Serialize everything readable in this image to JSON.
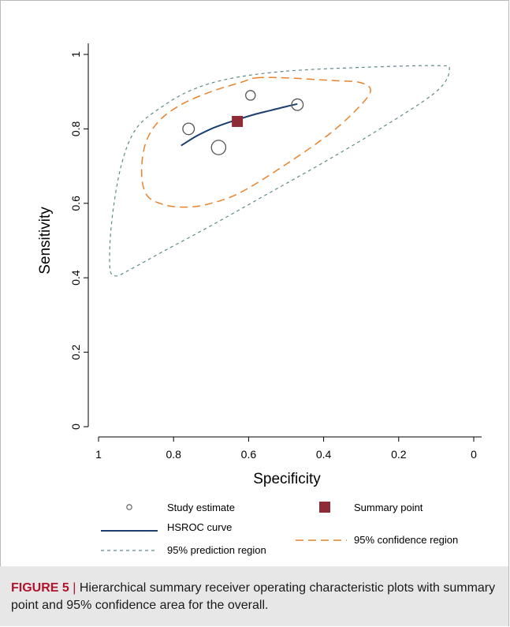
{
  "chart_data": {
    "type": "scatter",
    "xlabel": "Specificity",
    "ylabel": "Sensitivity",
    "xlim": [
      1,
      0
    ],
    "ylim": [
      0,
      1
    ],
    "x_ticks": [
      "1",
      "0.8",
      "0.6",
      "0.4",
      "0.2",
      "0"
    ],
    "x_tick_values": [
      1,
      0.8,
      0.6,
      0.4,
      0.2,
      0
    ],
    "y_ticks": [
      "0",
      "0.2",
      "0.4",
      "0.6",
      "0.8",
      "1"
    ],
    "y_tick_values": [
      0,
      0.2,
      0.4,
      0.6,
      0.8,
      1
    ],
    "study_estimates": [
      {
        "specificity": 0.76,
        "sensitivity": 0.8,
        "weight": 0.55
      },
      {
        "specificity": 0.68,
        "sensitivity": 0.75,
        "weight": 0.85
      },
      {
        "specificity": 0.595,
        "sensitivity": 0.89,
        "weight": 0.35
      },
      {
        "specificity": 0.47,
        "sensitivity": 0.865,
        "weight": 0.55
      }
    ],
    "summary_point": {
      "specificity": 0.63,
      "sensitivity": 0.82
    },
    "hsroc_curve": [
      [
        0.78,
        0.755
      ],
      [
        0.74,
        0.78
      ],
      [
        0.7,
        0.8
      ],
      [
        0.66,
        0.815
      ],
      [
        0.62,
        0.828
      ],
      [
        0.58,
        0.84
      ],
      [
        0.54,
        0.85
      ],
      [
        0.5,
        0.86
      ],
      [
        0.47,
        0.867
      ]
    ],
    "confidence_region": [
      [
        0.58,
        0.937
      ],
      [
        0.5,
        0.937
      ],
      [
        0.38,
        0.93
      ],
      [
        0.305,
        0.925
      ],
      [
        0.275,
        0.905
      ],
      [
        0.3,
        0.865
      ],
      [
        0.38,
        0.79
      ],
      [
        0.5,
        0.705
      ],
      [
        0.62,
        0.63
      ],
      [
        0.7,
        0.6
      ],
      [
        0.76,
        0.59
      ],
      [
        0.82,
        0.595
      ],
      [
        0.87,
        0.62
      ],
      [
        0.885,
        0.68
      ],
      [
        0.875,
        0.76
      ],
      [
        0.84,
        0.82
      ],
      [
        0.78,
        0.865
      ],
      [
        0.7,
        0.9
      ],
      [
        0.62,
        0.925
      ]
    ],
    "prediction_region": [
      [
        0.5,
        0.955
      ],
      [
        0.3,
        0.965
      ],
      [
        0.1,
        0.97
      ],
      [
        0.065,
        0.96
      ],
      [
        0.1,
        0.9
      ],
      [
        0.25,
        0.8
      ],
      [
        0.4,
        0.71
      ],
      [
        0.55,
        0.625
      ],
      [
        0.7,
        0.54
      ],
      [
        0.82,
        0.475
      ],
      [
        0.92,
        0.42
      ],
      [
        0.955,
        0.405
      ],
      [
        0.97,
        0.43
      ],
      [
        0.965,
        0.55
      ],
      [
        0.94,
        0.7
      ],
      [
        0.9,
        0.8
      ],
      [
        0.83,
        0.86
      ],
      [
        0.75,
        0.905
      ],
      [
        0.65,
        0.935
      ]
    ],
    "legend": {
      "study_estimate": "Study estimate",
      "summary_point": "Summary point",
      "hsroc_curve": "HSROC curve",
      "prediction_region": "95% prediction region",
      "confidence_region": "95% confidence region"
    },
    "colors": {
      "hsroc": "#1a3e6e",
      "summary": "#8e2b36",
      "confidence": "#e8822a",
      "prediction": "#5e8a8a",
      "study": "#555555"
    }
  },
  "caption": {
    "label": "FIGURE 5",
    "separator": "|",
    "text": "Hierarchical summary receiver operating characteristic plots with summary point and 95% confidence area for the overall."
  }
}
